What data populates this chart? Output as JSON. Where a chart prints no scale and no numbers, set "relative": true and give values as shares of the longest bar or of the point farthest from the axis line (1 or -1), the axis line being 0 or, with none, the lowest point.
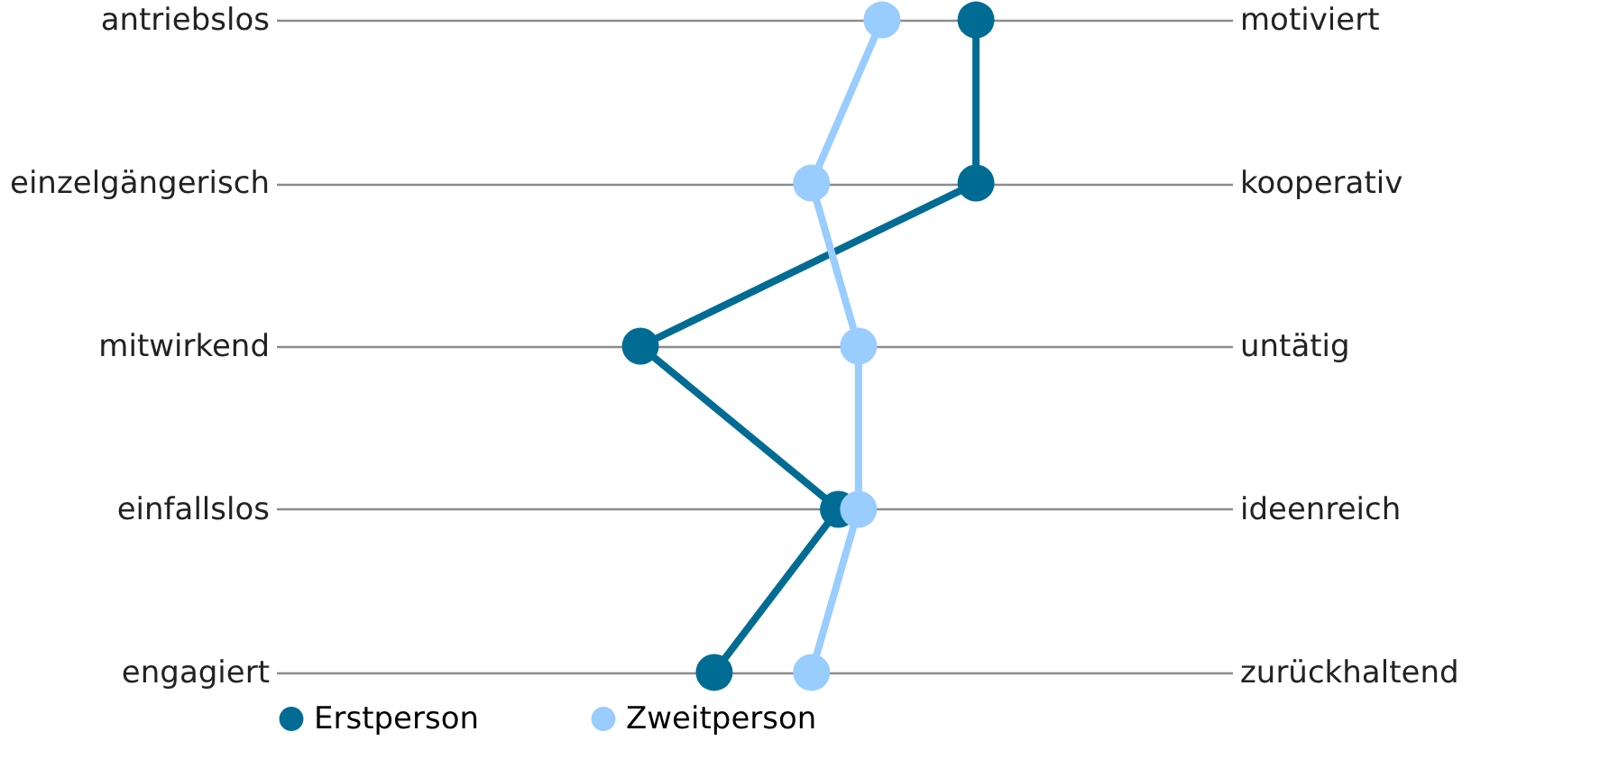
{
  "chart_data": {
    "type": "line",
    "orientation": "horizontal",
    "relative": true,
    "grid": "y",
    "legend": "bottom",
    "marker": "circle",
    "categories": [
      "antriebslos",
      "einzelgängerisch",
      "mitwirkend",
      "einfallslos",
      "engagiert"
    ],
    "y2_categories": [
      "motiviert",
      "kooperativ",
      "untätig",
      "ideenreich",
      "zurückhaltend"
    ],
    "series": [
      {
        "name": "Erstperson",
        "color": "#006c94",
        "values": [
          1,
          1,
          0,
          0.59,
          0.22
        ]
      },
      {
        "name": "Zweitperson",
        "color": "#99ccff",
        "values": [
          0.72,
          0.51,
          0.65,
          0.65,
          0.51
        ]
      }
    ]
  }
}
